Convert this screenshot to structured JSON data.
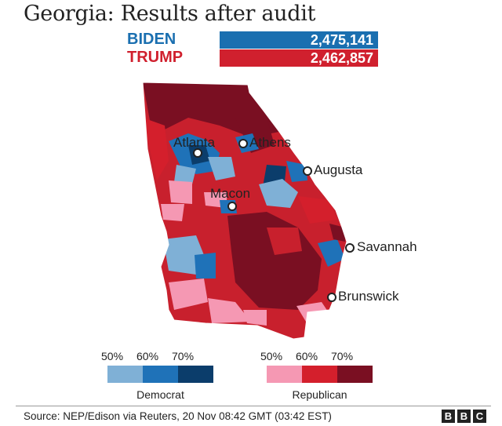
{
  "title": "Georgia: Results after audit",
  "candidates": [
    {
      "name": "BIDEN",
      "votes": "2,475,141",
      "color": "#1a6fb0"
    },
    {
      "name": "TRUMP",
      "votes": "2,462,857",
      "color": "#d0202e"
    }
  ],
  "cities": [
    {
      "name": "Atlanta"
    },
    {
      "name": "Athens"
    },
    {
      "name": "Augusta"
    },
    {
      "name": "Macon"
    },
    {
      "name": "Savannah"
    },
    {
      "name": "Brunswick"
    }
  ],
  "legend": {
    "democrat": {
      "label": "Democrat",
      "ticks": [
        "50%",
        "60%",
        "70%"
      ],
      "colors": [
        "#7fb0d6",
        "#1f72b8",
        "#0b3d6b"
      ]
    },
    "republican": {
      "label": "Republican",
      "ticks": [
        "50%",
        "60%",
        "70%"
      ],
      "colors": [
        "#f598b3",
        "#d41f2c",
        "#7a0f22"
      ]
    }
  },
  "source": "Source: NEP/Edison via Reuters, 20 Nov 08:42 GMT (03:42 EST)",
  "logo": [
    "B",
    "B",
    "C"
  ]
}
